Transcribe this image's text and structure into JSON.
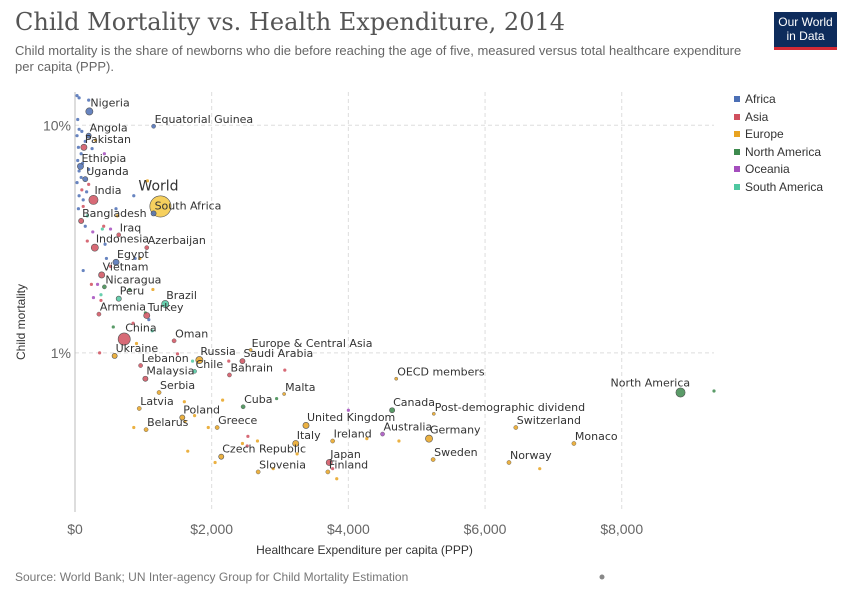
{
  "header": {
    "title": "Child Mortality vs. Health Expenditure, 2014",
    "subtitle": "Child mortality is the share of newborns who die before reaching the age of five, measured versus total healthcare expenditure per capita (PPP).",
    "logo_line1": "Our World",
    "logo_line2": "in Data"
  },
  "footer": {
    "source": "Source: World Bank; UN Inter-agency Group for Child Mortality Estimation"
  },
  "chart_data": {
    "type": "scatter",
    "xlabel": "Healthcare Expenditure per capita (PPP)",
    "ylabel": "Child mortality",
    "xlim": [
      0,
      9350
    ],
    "ylim": [
      0.2,
      14
    ],
    "y_scale": "log",
    "x_ticks": [
      0,
      2000,
      4000,
      6000,
      8000
    ],
    "x_tick_labels": [
      "$0",
      "$2,000",
      "$4,000",
      "$6,000",
      "$8,000"
    ],
    "y_ticks": [
      1,
      10
    ],
    "y_tick_labels": [
      "1%",
      "10%"
    ],
    "grid": true,
    "legend_position": "right",
    "regions": [
      {
        "name": "Africa",
        "color": "#4c6fb5"
      },
      {
        "name": "Asia",
        "color": "#d0505e"
      },
      {
        "name": "Europe",
        "color": "#e8a321"
      },
      {
        "name": "North America",
        "color": "#3d8a4e"
      },
      {
        "name": "Oceania",
        "color": "#a44ebd"
      },
      {
        "name": "South America",
        "color": "#4ec7a0"
      }
    ],
    "labeled_points": [
      {
        "label": "Nigeria",
        "x": 210,
        "y": 11.5,
        "region": "Africa",
        "size": 6
      },
      {
        "label": "Equatorial Guinea",
        "x": 1150,
        "y": 9.9,
        "region": "Africa",
        "size": 3
      },
      {
        "label": "Angola",
        "x": 200,
        "y": 9.0,
        "region": "Africa",
        "size": 4
      },
      {
        "label": "Pakistan",
        "x": 130,
        "y": 8.0,
        "region": "Asia",
        "size": 5
      },
      {
        "label": "Ethiopia",
        "x": 80,
        "y": 6.6,
        "region": "Africa",
        "size": 5
      },
      {
        "label": "Uganda",
        "x": 150,
        "y": 5.8,
        "region": "Africa",
        "size": 4
      },
      {
        "label": "World",
        "x": 1250,
        "y": 4.4,
        "region": "World",
        "size": 20
      },
      {
        "label": "India",
        "x": 270,
        "y": 4.7,
        "region": "Asia",
        "size": 8
      },
      {
        "label": "South Africa",
        "x": 1150,
        "y": 4.1,
        "region": "Africa",
        "size": 4
      },
      {
        "label": "Bangladesh",
        "x": 90,
        "y": 3.8,
        "region": "Asia",
        "size": 4
      },
      {
        "label": "Iraq",
        "x": 640,
        "y": 3.3,
        "region": "Asia",
        "size": 3
      },
      {
        "label": "Azerbaijan",
        "x": 1050,
        "y": 2.9,
        "region": "Asia",
        "size": 3
      },
      {
        "label": "Indonesia",
        "x": 290,
        "y": 2.9,
        "region": "Asia",
        "size": 6
      },
      {
        "label": "Egypt",
        "x": 600,
        "y": 2.5,
        "region": "Africa",
        "size": 5
      },
      {
        "label": "Vietnam",
        "x": 390,
        "y": 2.2,
        "region": "Asia",
        "size": 5
      },
      {
        "label": "Nicaragua",
        "x": 430,
        "y": 1.95,
        "region": "North America",
        "size": 3
      },
      {
        "label": "Peru",
        "x": 640,
        "y": 1.73,
        "region": "South America",
        "size": 4
      },
      {
        "label": "Brazil",
        "x": 1320,
        "y": 1.64,
        "region": "South America",
        "size": 6
      },
      {
        "label": "Armenia",
        "x": 350,
        "y": 1.48,
        "region": "Asia",
        "size": 3
      },
      {
        "label": "Turkey",
        "x": 1050,
        "y": 1.46,
        "region": "Asia",
        "size": 5
      },
      {
        "label": "China",
        "x": 720,
        "y": 1.15,
        "region": "Asia",
        "size": 11
      },
      {
        "label": "Oman",
        "x": 1450,
        "y": 1.13,
        "region": "Asia",
        "size": 3
      },
      {
        "label": "Europe & Central Asia",
        "x": 2570,
        "y": 1.03,
        "region": "Aggregate",
        "size": 2
      },
      {
        "label": "Ukraine",
        "x": 580,
        "y": 0.97,
        "region": "Europe",
        "size": 4
      },
      {
        "label": "Russia",
        "x": 1820,
        "y": 0.93,
        "region": "Europe",
        "size": 6
      },
      {
        "label": "Saudi Arabia",
        "x": 2450,
        "y": 0.92,
        "region": "Asia",
        "size": 4
      },
      {
        "label": "Lebanon",
        "x": 960,
        "y": 0.88,
        "region": "Asia",
        "size": 3
      },
      {
        "label": "Chile",
        "x": 1750,
        "y": 0.83,
        "region": "South America",
        "size": 3
      },
      {
        "label": "Bahrain",
        "x": 2260,
        "y": 0.8,
        "region": "Asia",
        "size": 3
      },
      {
        "label": "Malaysia",
        "x": 1030,
        "y": 0.77,
        "region": "Asia",
        "size": 4
      },
      {
        "label": "OECD members",
        "x": 4700,
        "y": 0.77,
        "region": "Aggregate",
        "size": 2
      },
      {
        "label": "North America",
        "x": 8860,
        "y": 0.67,
        "region": "North America",
        "size": 8
      },
      {
        "label": "Serbia",
        "x": 1230,
        "y": 0.67,
        "region": "Europe",
        "size": 3
      },
      {
        "label": "Malta",
        "x": 3060,
        "y": 0.66,
        "region": "Europe",
        "size": 2
      },
      {
        "label": "Latvia",
        "x": 940,
        "y": 0.57,
        "region": "Europe",
        "size": 3
      },
      {
        "label": "Cuba",
        "x": 2460,
        "y": 0.58,
        "region": "North America",
        "size": 3
      },
      {
        "label": "Canada",
        "x": 4640,
        "y": 0.56,
        "region": "North America",
        "size": 4
      },
      {
        "label": "Post-demographic dividend",
        "x": 5250,
        "y": 0.54,
        "region": "Aggregate",
        "size": 2
      },
      {
        "label": "Poland",
        "x": 1570,
        "y": 0.52,
        "region": "Europe",
        "size": 4
      },
      {
        "label": "Belarus",
        "x": 1040,
        "y": 0.46,
        "region": "Europe",
        "size": 3
      },
      {
        "label": "Greece",
        "x": 2080,
        "y": 0.47,
        "region": "Europe",
        "size": 3
      },
      {
        "label": "United Kingdom",
        "x": 3380,
        "y": 0.48,
        "region": "Europe",
        "size": 5
      },
      {
        "label": "Switzerland",
        "x": 6450,
        "y": 0.47,
        "region": "Europe",
        "size": 3
      },
      {
        "label": "Australia",
        "x": 4500,
        "y": 0.44,
        "region": "Oceania",
        "size": 3
      },
      {
        "label": "Germany",
        "x": 5180,
        "y": 0.42,
        "region": "Europe",
        "size": 6
      },
      {
        "label": "Ireland",
        "x": 3770,
        "y": 0.41,
        "region": "Europe",
        "size": 3
      },
      {
        "label": "Italy",
        "x": 3230,
        "y": 0.4,
        "region": "Europe",
        "size": 5
      },
      {
        "label": "Monaco",
        "x": 7300,
        "y": 0.4,
        "region": "Europe",
        "size": 3
      },
      {
        "label": "Czech Republic",
        "x": 2140,
        "y": 0.35,
        "region": "Europe",
        "size": 4
      },
      {
        "label": "Sweden",
        "x": 5240,
        "y": 0.34,
        "region": "Europe",
        "size": 3
      },
      {
        "label": "Norway",
        "x": 6350,
        "y": 0.33,
        "region": "Europe",
        "size": 3
      },
      {
        "label": "Japan",
        "x": 3720,
        "y": 0.33,
        "region": "Asia",
        "size": 5
      },
      {
        "label": "Slovenia",
        "x": 2680,
        "y": 0.3,
        "region": "Europe",
        "size": 3
      },
      {
        "label": "Finland",
        "x": 3700,
        "y": 0.3,
        "region": "Europe",
        "size": 3
      }
    ],
    "other_points": [
      {
        "x": 30,
        "y": 13.5,
        "region": "Africa"
      },
      {
        "x": 60,
        "y": 13.2,
        "region": "Africa"
      },
      {
        "x": 200,
        "y": 12.9,
        "region": "Africa"
      },
      {
        "x": 40,
        "y": 10.6,
        "region": "Africa"
      },
      {
        "x": 60,
        "y": 9.6,
        "region": "Africa"
      },
      {
        "x": 100,
        "y": 9.4,
        "region": "Africa"
      },
      {
        "x": 30,
        "y": 9.0,
        "region": "Africa"
      },
      {
        "x": 150,
        "y": 8.5,
        "region": "Africa"
      },
      {
        "x": 50,
        "y": 8.0,
        "region": "Africa"
      },
      {
        "x": 90,
        "y": 7.5,
        "region": "Africa"
      },
      {
        "x": 250,
        "y": 7.9,
        "region": "Africa"
      },
      {
        "x": 40,
        "y": 7.0,
        "region": "Africa"
      },
      {
        "x": 110,
        "y": 6.8,
        "region": "Africa"
      },
      {
        "x": 60,
        "y": 6.3,
        "region": "Africa"
      },
      {
        "x": 200,
        "y": 6.4,
        "region": "Africa"
      },
      {
        "x": 90,
        "y": 5.9,
        "region": "Africa"
      },
      {
        "x": 30,
        "y": 5.6,
        "region": "Africa"
      },
      {
        "x": 170,
        "y": 5.1,
        "region": "Africa"
      },
      {
        "x": 60,
        "y": 4.9,
        "region": "Africa"
      },
      {
        "x": 120,
        "y": 4.7,
        "region": "Africa"
      },
      {
        "x": 50,
        "y": 4.3,
        "region": "Africa"
      },
      {
        "x": 860,
        "y": 4.9,
        "region": "Africa"
      },
      {
        "x": 600,
        "y": 4.3,
        "region": "Africa"
      },
      {
        "x": 150,
        "y": 3.6,
        "region": "Africa"
      },
      {
        "x": 440,
        "y": 3.0,
        "region": "Africa"
      },
      {
        "x": 460,
        "y": 2.6,
        "region": "Africa"
      },
      {
        "x": 880,
        "y": 2.6,
        "region": "Africa"
      },
      {
        "x": 120,
        "y": 2.3,
        "region": "Africa"
      },
      {
        "x": 1080,
        "y": 1.4,
        "region": "Africa"
      },
      {
        "x": 100,
        "y": 5.2,
        "region": "Asia"
      },
      {
        "x": 200,
        "y": 5.5,
        "region": "Asia"
      },
      {
        "x": 120,
        "y": 4.4,
        "region": "Asia"
      },
      {
        "x": 420,
        "y": 3.6,
        "region": "Asia"
      },
      {
        "x": 180,
        "y": 3.1,
        "region": "Asia"
      },
      {
        "x": 520,
        "y": 2.4,
        "region": "Asia"
      },
      {
        "x": 240,
        "y": 2.0,
        "region": "Asia"
      },
      {
        "x": 380,
        "y": 1.7,
        "region": "Asia"
      },
      {
        "x": 850,
        "y": 1.35,
        "region": "Asia"
      },
      {
        "x": 360,
        "y": 1.0,
        "region": "Asia"
      },
      {
        "x": 1500,
        "y": 0.99,
        "region": "Asia"
      },
      {
        "x": 2250,
        "y": 0.92,
        "region": "Asia"
      },
      {
        "x": 3070,
        "y": 0.84,
        "region": "Asia"
      },
      {
        "x": 2530,
        "y": 0.43,
        "region": "Asia"
      },
      {
        "x": 2520,
        "y": 0.39,
        "region": "Asia"
      },
      {
        "x": 3770,
        "y": 0.31,
        "region": "Asia"
      },
      {
        "x": 300,
        "y": 8.6,
        "region": "Europe"
      },
      {
        "x": 1060,
        "y": 5.7,
        "region": "Europe"
      },
      {
        "x": 620,
        "y": 4.0,
        "region": "Europe"
      },
      {
        "x": 950,
        "y": 2.6,
        "region": "Europe"
      },
      {
        "x": 1140,
        "y": 1.9,
        "region": "Europe"
      },
      {
        "x": 900,
        "y": 1.1,
        "region": "Europe"
      },
      {
        "x": 2160,
        "y": 0.62,
        "region": "Europe"
      },
      {
        "x": 1600,
        "y": 0.61,
        "region": "Europe"
      },
      {
        "x": 1750,
        "y": 0.53,
        "region": "Europe"
      },
      {
        "x": 860,
        "y": 0.47,
        "region": "Europe"
      },
      {
        "x": 1610,
        "y": 0.5,
        "region": "Europe"
      },
      {
        "x": 1950,
        "y": 0.47,
        "region": "Europe"
      },
      {
        "x": 2670,
        "y": 0.41,
        "region": "Europe"
      },
      {
        "x": 2450,
        "y": 0.4,
        "region": "Europe"
      },
      {
        "x": 4270,
        "y": 0.42,
        "region": "Europe"
      },
      {
        "x": 4740,
        "y": 0.41,
        "region": "Europe"
      },
      {
        "x": 1650,
        "y": 0.37,
        "region": "Europe"
      },
      {
        "x": 2050,
        "y": 0.33,
        "region": "Europe"
      },
      {
        "x": 3250,
        "y": 0.36,
        "region": "Europe"
      },
      {
        "x": 2900,
        "y": 0.31,
        "region": "Europe"
      },
      {
        "x": 3830,
        "y": 0.28,
        "region": "Europe"
      },
      {
        "x": 6800,
        "y": 0.31,
        "region": "Europe"
      },
      {
        "x": 800,
        "y": 1.9,
        "region": "North America"
      },
      {
        "x": 1030,
        "y": 1.5,
        "region": "North America"
      },
      {
        "x": 560,
        "y": 1.3,
        "region": "North America"
      },
      {
        "x": 2950,
        "y": 0.63,
        "region": "North America"
      },
      {
        "x": 9350,
        "y": 0.68,
        "region": "North America"
      },
      {
        "x": 430,
        "y": 7.5,
        "region": "Oceania"
      },
      {
        "x": 260,
        "y": 3.4,
        "region": "Oceania"
      },
      {
        "x": 520,
        "y": 3.5,
        "region": "Oceania"
      },
      {
        "x": 330,
        "y": 2.0,
        "region": "Oceania"
      },
      {
        "x": 270,
        "y": 1.75,
        "region": "Oceania"
      },
      {
        "x": 4000,
        "y": 0.56,
        "region": "Oceania"
      },
      {
        "x": 180,
        "y": 4.0,
        "region": "South America"
      },
      {
        "x": 400,
        "y": 3.5,
        "region": "South America"
      },
      {
        "x": 380,
        "y": 1.8,
        "region": "South America"
      },
      {
        "x": 1130,
        "y": 1.25,
        "region": "South America"
      },
      {
        "x": 1720,
        "y": 0.92,
        "region": "South America"
      }
    ]
  }
}
